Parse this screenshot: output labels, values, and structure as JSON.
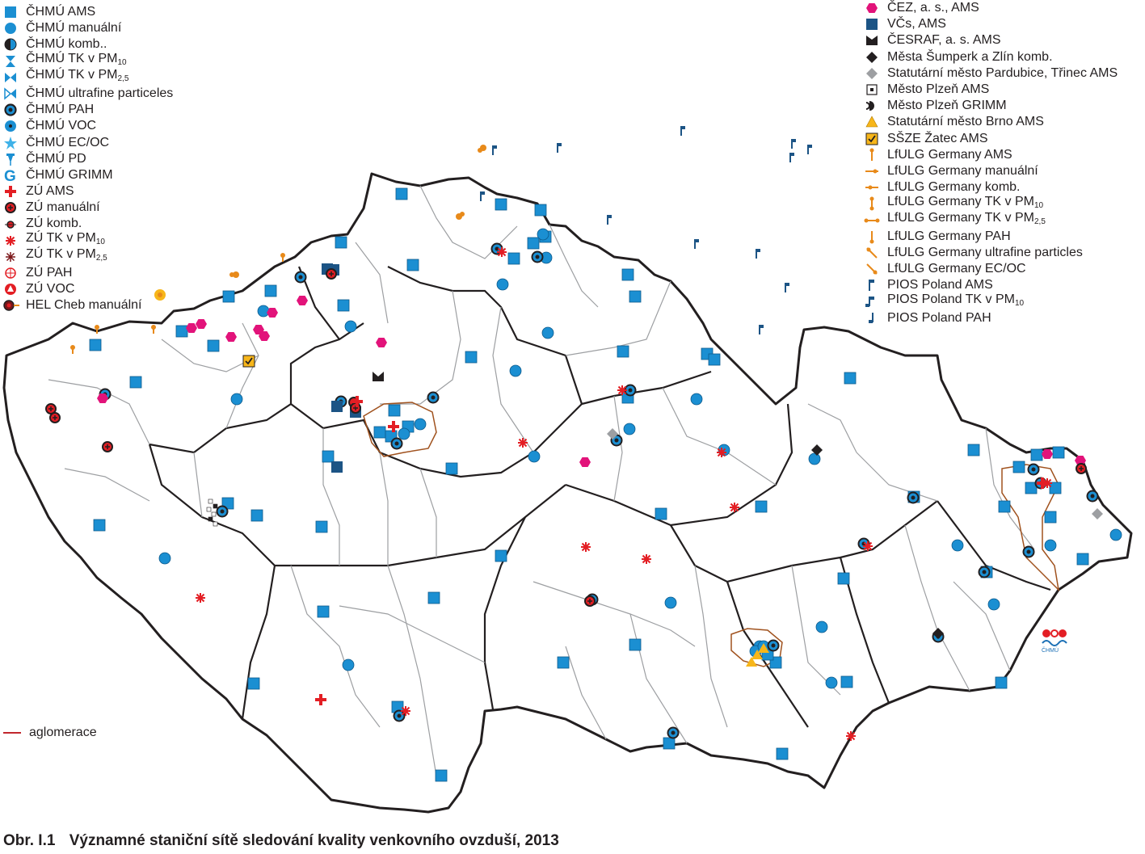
{
  "legend_left": [
    {
      "label": "ČHMÚ AMS",
      "sym": "sq-blue"
    },
    {
      "label": "ČHMÚ manuální",
      "sym": "circ-blue"
    },
    {
      "label": "ČHMÚ komb..",
      "sym": "half-circ"
    },
    {
      "label": "ČHMÚ TK v PM",
      "sub": "10",
      "sym": "hourglass"
    },
    {
      "label": "ČHMÚ TK v PM",
      "sub": "2,5",
      "sym": "bowtie"
    },
    {
      "label": "ČHMÚ ultrafine particeles",
      "sym": "bowtie-open"
    },
    {
      "label": "ČHMÚ PAH",
      "sym": "circ-dark-dot"
    },
    {
      "label": "ČHMÚ VOC",
      "sym": "circ-blue-dot"
    },
    {
      "label": "ČHMÚ EC/OC",
      "sym": "star-blue"
    },
    {
      "label": "ČHMÚ PD",
      "sym": "pin-blue"
    },
    {
      "label": "ČHMÚ GRIMM",
      "sym": "g-blue"
    },
    {
      "label": "ZÚ AMS",
      "sym": "cross-red"
    },
    {
      "label": "ZÚ manuální",
      "sym": "circ-red-cross"
    },
    {
      "label": "ZÚ komb.",
      "sym": "circ-red-small"
    },
    {
      "label": "ZÚ TK v PM",
      "sub": "10",
      "sym": "asterisk-red"
    },
    {
      "label": "ZÚ TK v PM",
      "sub": "2,5",
      "sym": "asterisk-dark"
    },
    {
      "label": "ZÚ PAH",
      "sym": "circ-open-red"
    },
    {
      "label": "ZÚ VOC",
      "sym": "circ-red-tri"
    },
    {
      "label": "HEL Cheb manuální",
      "sym": "hel"
    }
  ],
  "legend_right": [
    {
      "label": "ČEZ, a. s., AMS",
      "sym": "hex-magenta"
    },
    {
      "label": "VČs, AMS",
      "sym": "sq-navy"
    },
    {
      "label": "ČESRAF, a. s. AMS",
      "sym": "bowtie-black"
    },
    {
      "label": "Města Šumperk a Zlín komb.",
      "sym": "diamond-black"
    },
    {
      "label": "Statutární město Pardubice, Třinec AMS",
      "sym": "diamond-grey"
    },
    {
      "label": "Město Plzeň AMS",
      "sym": "sq-dot"
    },
    {
      "label": "Město Plzeň GRIMM",
      "sym": "d-black"
    },
    {
      "label": "Statutární město  Brno AMS",
      "sym": "tri-yellow"
    },
    {
      "label": "SŠZE Žatec AMS",
      "sym": "check-yellow"
    },
    {
      "label": "LfULG Germany AMS",
      "sym": "lf-ams"
    },
    {
      "label": "LfULG Germany manuální",
      "sym": "lf-man"
    },
    {
      "label": "LfULG Germany komb.",
      "sym": "lf-komb"
    },
    {
      "label": "LfULG Germany TK v PM",
      "sub": "10",
      "sym": "lf-tk10"
    },
    {
      "label": "LfULG Germany TK v PM",
      "sub": "2,5",
      "sym": "lf-tk25"
    },
    {
      "label": "LfULG Germany PAH",
      "sym": "lf-pah"
    },
    {
      "label": "LfULG Germany ultrafine particles",
      "sym": "lf-uf"
    },
    {
      "label": "LfULG Germany EC/OC",
      "sym": "lf-ecoc"
    },
    {
      "label": "PIOS Poland AMS",
      "sym": "pios-ams"
    },
    {
      "label": "PIOS Poland TK v PM",
      "sub": "10",
      "sym": "pios-tk"
    },
    {
      "label": "PIOS Poland PAH",
      "sym": "pios-pah"
    }
  ],
  "aglomerace_label": "aglomerace",
  "caption_number": "Obr. I.1",
  "caption_text": "Významné staniční sítě sledování kvality venkovního ovzduší, 2013",
  "logo_text": "ČHMÚ",
  "colors": {
    "border": "#231f20",
    "region": "#9d9fa2",
    "chmu_blue": "#1b8fd2",
    "zu_red": "#e31e24",
    "cez_magenta": "#e2137a",
    "navy": "#1c5485",
    "aglomerace": "#a0521e",
    "brno_yellow": "#f7b61a",
    "lfulg_orange": "#e88a1a"
  }
}
